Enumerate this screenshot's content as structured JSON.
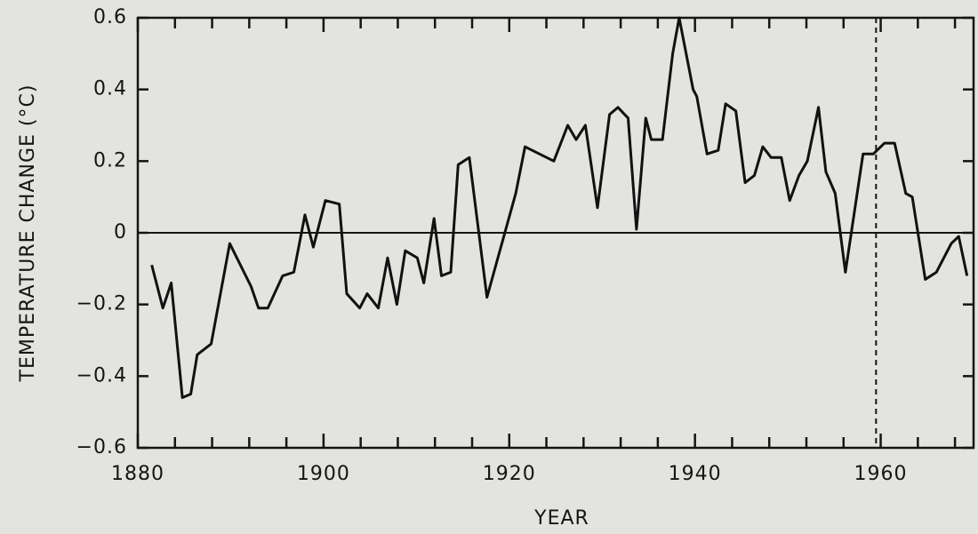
{
  "chart_data": {
    "type": "line",
    "xlabel": "YEAR",
    "ylabel": "TEMPERATURE CHANGE (°C)",
    "x": [
      1881.5,
      1882.7,
      1883.6,
      1884.8,
      1885.7,
      1886.4,
      1887.9,
      1889.9,
      1892.2,
      1893,
      1894,
      1895.6,
      1896.8,
      1898,
      1898.9,
      1900.2,
      1901.7,
      1902.5,
      1903.9,
      1904.7,
      1905.9,
      1906.9,
      1907.9,
      1908.8,
      1910.1,
      1910.8,
      1911.9,
      1912.7,
      1913.7,
      1914.5,
      1915.7,
      1917.6,
      1920.7,
      1921.7,
      1924.8,
      1926.3,
      1927.2,
      1928.2,
      1929.5,
      1930.8,
      1931.7,
      1932.8,
      1933.7,
      1934.7,
      1935.3,
      1936.5,
      1937.6,
      1938.3,
      1939.8,
      1940.2,
      1941.3,
      1942.5,
      1943.3,
      1944.4,
      1945.4,
      1946.4,
      1947.3,
      1948.2,
      1949.3,
      1950.2,
      1951.2,
      1952.1,
      1953.3,
      1954.1,
      1955.1,
      1956.2,
      1958.1,
      1959.2,
      1960.4,
      1961.5,
      1962.7,
      1963.4,
      1964.8,
      1966,
      1967.6,
      1968.4,
      1969.3
    ],
    "series": [
      {
        "name": "Temperature change",
        "color": "#111111",
        "values": [
          -0.09,
          -0.21,
          -0.14,
          -0.46,
          -0.45,
          -0.34,
          -0.31,
          -0.03,
          -0.15,
          -0.21,
          -0.21,
          -0.12,
          -0.11,
          0.05,
          -0.04,
          0.09,
          0.08,
          -0.17,
          -0.21,
          -0.17,
          -0.21,
          -0.07,
          -0.2,
          -0.05,
          -0.07,
          -0.14,
          0.04,
          -0.12,
          -0.11,
          0.19,
          0.21,
          -0.18,
          0.11,
          0.24,
          0.2,
          0.3,
          0.26,
          0.3,
          0.07,
          0.33,
          0.35,
          0.32,
          0.01,
          0.32,
          0.26,
          0.26,
          0.5,
          0.6,
          0.4,
          0.38,
          0.22,
          0.23,
          0.36,
          0.34,
          0.14,
          0.16,
          0.24,
          0.21,
          0.21,
          0.09,
          0.16,
          0.2,
          0.35,
          0.17,
          0.11,
          -0.11,
          0.22,
          0.22,
          0.25,
          0.25,
          0.11,
          0.1,
          -0.13,
          -0.11,
          -0.03,
          -0.01,
          -0.12
        ]
      }
    ],
    "xlim": [
      1880,
      1970
    ],
    "xticks": [
      1880,
      1900,
      1920,
      1940,
      1960
    ],
    "xminorticks": [
      1884,
      1888,
      1892,
      1896,
      1904,
      1908,
      1912,
      1916,
      1924,
      1928,
      1932,
      1936,
      1944,
      1948,
      1952,
      1956,
      1964,
      1968
    ],
    "ylim": [
      -0.6,
      0.6
    ],
    "yticks": [
      {
        "value": -0.6,
        "label": "−0.6"
      },
      {
        "value": -0.4,
        "label": "−0.4"
      },
      {
        "value": -0.2,
        "label": "−0.2"
      },
      0,
      0.2,
      0.4,
      0.6
    ],
    "reference_x": 1959.5,
    "grid": false
  }
}
